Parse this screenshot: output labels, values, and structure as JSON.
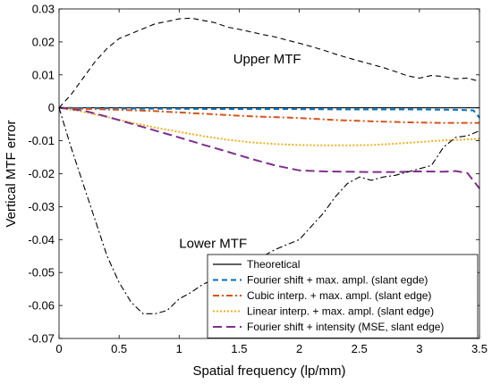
{
  "chart_data": {
    "type": "line",
    "xlabel": "Spatial frequency (lp/mm)",
    "ylabel": "Vertical MTF error",
    "xlim": [
      0,
      3.5
    ],
    "ylim": [
      -0.07,
      0.03
    ],
    "xticks": [
      "0",
      "0.5",
      "1",
      "1.5",
      "2",
      "2.5",
      "3",
      "3.5"
    ],
    "yticks": [
      "0.03",
      "0.02",
      "0.01",
      "0",
      "-0.01",
      "-0.02",
      "-0.03",
      "-0.04",
      "-0.05",
      "-0.06",
      "-0.07"
    ],
    "grid": false,
    "legend_position": "bottom-right",
    "annotations": [
      {
        "text": "Upper MTF",
        "x": 1.45,
        "y": 0.0135
      },
      {
        "text": "Lower MTF",
        "x": 1.0,
        "y": -0.0425
      }
    ],
    "series": [
      {
        "name": "Theoretical",
        "color": "#000000",
        "dash": "solid",
        "x": [
          0,
          3.5
        ],
        "y": [
          0,
          0
        ]
      },
      {
        "name": "Fourier shift + max. ampl. (slant egde)",
        "color": "#0072BD",
        "dash": "dash",
        "x": [
          0,
          0.5,
          1,
          1.5,
          2,
          2.5,
          3,
          3.3,
          3.45,
          3.5
        ],
        "y": [
          0,
          -0.0002,
          -0.0003,
          -0.0004,
          -0.0004,
          -0.0005,
          -0.0005,
          -0.0006,
          -0.0008,
          -0.003
        ]
      },
      {
        "name": "Cubic interp. + max. ampl. (slant edge)",
        "color": "#D95319",
        "dash": "dashdot",
        "x": [
          0,
          0.2,
          0.5,
          0.8,
          1.0,
          1.3,
          1.6,
          2.0,
          2.3,
          2.6,
          2.9,
          3.2,
          3.5
        ],
        "y": [
          0,
          -0.0003,
          -0.0006,
          -0.001,
          -0.0014,
          -0.002,
          -0.0026,
          -0.0031,
          -0.0037,
          -0.0041,
          -0.0044,
          -0.0046,
          -0.0046
        ]
      },
      {
        "name": "Linear interp. + max. ampl. (slant edge)",
        "color": "#EDB120",
        "dash": "dot",
        "x": [
          0,
          0.2,
          0.4,
          0.6,
          0.8,
          1.0,
          1.2,
          1.4,
          1.6,
          1.8,
          2.0,
          2.2,
          2.4,
          2.6,
          2.8,
          3.0,
          3.2,
          3.4,
          3.5
        ],
        "y": [
          0,
          -0.0012,
          -0.0028,
          -0.0045,
          -0.006,
          -0.0073,
          -0.0086,
          -0.0097,
          -0.0105,
          -0.011,
          -0.0113,
          -0.0114,
          -0.0114,
          -0.0113,
          -0.0109,
          -0.0104,
          -0.0099,
          -0.0096,
          -0.0094
        ]
      },
      {
        "name": "Fourier shift + intensity (MSE, slant edge)",
        "color": "#7E2F8E",
        "dash": "longdash",
        "x": [
          0,
          0.2,
          0.4,
          0.6,
          0.8,
          1.0,
          1.2,
          1.4,
          1.6,
          1.8,
          2.0,
          2.2,
          2.4,
          2.6,
          2.8,
          3.0,
          3.2,
          3.3,
          3.4,
          3.5
        ],
        "y": [
          0,
          -0.0008,
          -0.0027,
          -0.0048,
          -0.0069,
          -0.009,
          -0.0112,
          -0.0133,
          -0.0155,
          -0.0175,
          -0.019,
          -0.0193,
          -0.0194,
          -0.0195,
          -0.0195,
          -0.0193,
          -0.0194,
          -0.0192,
          -0.0198,
          -0.0245
        ]
      },
      {
        "name": "Upper MTF",
        "color": "#000000",
        "dash": "dash",
        "x": [
          0,
          0.1,
          0.2,
          0.3,
          0.4,
          0.5,
          0.6,
          0.7,
          0.8,
          0.9,
          1.0,
          1.1,
          1.2,
          1.3,
          1.4,
          1.5,
          1.6,
          1.7,
          1.8,
          1.9,
          2.0,
          2.1,
          2.2,
          2.3,
          2.4,
          2.5,
          2.6,
          2.7,
          2.8,
          2.9,
          3.0,
          3.1,
          3.2,
          3.3,
          3.4,
          3.5
        ],
        "y": [
          0,
          0.004,
          0.009,
          0.014,
          0.018,
          0.021,
          0.0225,
          0.024,
          0.0255,
          0.0262,
          0.027,
          0.0272,
          0.0265,
          0.0258,
          0.0245,
          0.0238,
          0.023,
          0.0222,
          0.0215,
          0.0205,
          0.0196,
          0.0186,
          0.0175,
          0.0163,
          0.0152,
          0.0142,
          0.0132,
          0.0122,
          0.011,
          0.0097,
          0.009,
          0.0098,
          0.0095,
          0.0088,
          0.009,
          0.008
        ]
      },
      {
        "name": "Lower MTF",
        "color": "#000000",
        "dash": "dashdot",
        "x": [
          0,
          0.05,
          0.1,
          0.2,
          0.3,
          0.4,
          0.5,
          0.6,
          0.7,
          0.8,
          0.9,
          1.0,
          1.1,
          1.2,
          1.3,
          1.4,
          1.5,
          1.6,
          1.7,
          1.8,
          1.9,
          2.0,
          2.1,
          2.2,
          2.3,
          2.4,
          2.5,
          2.6,
          2.7,
          2.8,
          2.9,
          3.0,
          3.1,
          3.2,
          3.3,
          3.4,
          3.5
        ],
        "y": [
          0,
          -0.006,
          -0.012,
          -0.023,
          -0.034,
          -0.045,
          -0.053,
          -0.059,
          -0.0625,
          -0.0625,
          -0.0615,
          -0.058,
          -0.056,
          -0.0535,
          -0.052,
          -0.05,
          -0.048,
          -0.0465,
          -0.045,
          -0.043,
          -0.0415,
          -0.04,
          -0.036,
          -0.032,
          -0.027,
          -0.023,
          -0.021,
          -0.022,
          -0.021,
          -0.0205,
          -0.0195,
          -0.0185,
          -0.0175,
          -0.012,
          -0.009,
          -0.0085,
          -0.007
        ]
      }
    ]
  }
}
